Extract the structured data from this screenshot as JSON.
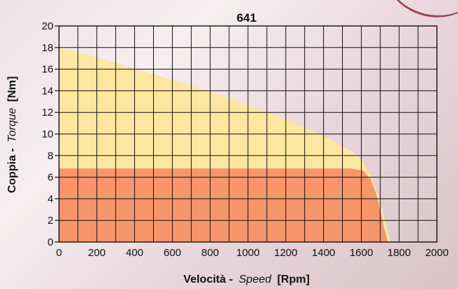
{
  "chart_data": {
    "type": "area",
    "title": "641",
    "xlabel": {
      "bold": "Velocità -",
      "italic": "Speed",
      "unit": "[Rpm]"
    },
    "ylabel": {
      "bold": "Coppia -",
      "italic": "Torque",
      "unit": "[Nm]"
    },
    "xlim": [
      0,
      2000
    ],
    "ylim": [
      0,
      20
    ],
    "xticks": [
      0,
      200,
      400,
      600,
      800,
      1000,
      1200,
      1400,
      1600,
      1800,
      2000
    ],
    "yticks": [
      0,
      2,
      4,
      6,
      8,
      10,
      12,
      14,
      16,
      18,
      20
    ],
    "grid": true,
    "series": [
      {
        "color": "#fde6a0",
        "points": [
          [
            0,
            18
          ],
          [
            200,
            17.1
          ],
          [
            400,
            16.1
          ],
          [
            600,
            15.0
          ],
          [
            800,
            13.9
          ],
          [
            1000,
            12.7
          ],
          [
            1200,
            11.4
          ],
          [
            1400,
            9.8
          ],
          [
            1500,
            8.9
          ],
          [
            1560,
            8.3
          ],
          [
            1610,
            7.4
          ],
          [
            1650,
            6.2
          ],
          [
            1690,
            4.3
          ],
          [
            1720,
            2.4
          ],
          [
            1740,
            1.0
          ],
          [
            1755,
            0
          ]
        ]
      },
      {
        "color": "#f7956a",
        "points": [
          [
            0,
            6.8
          ],
          [
            200,
            6.8
          ],
          [
            400,
            6.8
          ],
          [
            600,
            6.8
          ],
          [
            800,
            6.8
          ],
          [
            1000,
            6.8
          ],
          [
            1200,
            6.8
          ],
          [
            1400,
            6.8
          ],
          [
            1550,
            6.8
          ],
          [
            1610,
            6.6
          ],
          [
            1650,
            5.8
          ],
          [
            1680,
            4.4
          ],
          [
            1705,
            2.6
          ],
          [
            1725,
            1.0
          ],
          [
            1740,
            0
          ]
        ]
      }
    ]
  }
}
